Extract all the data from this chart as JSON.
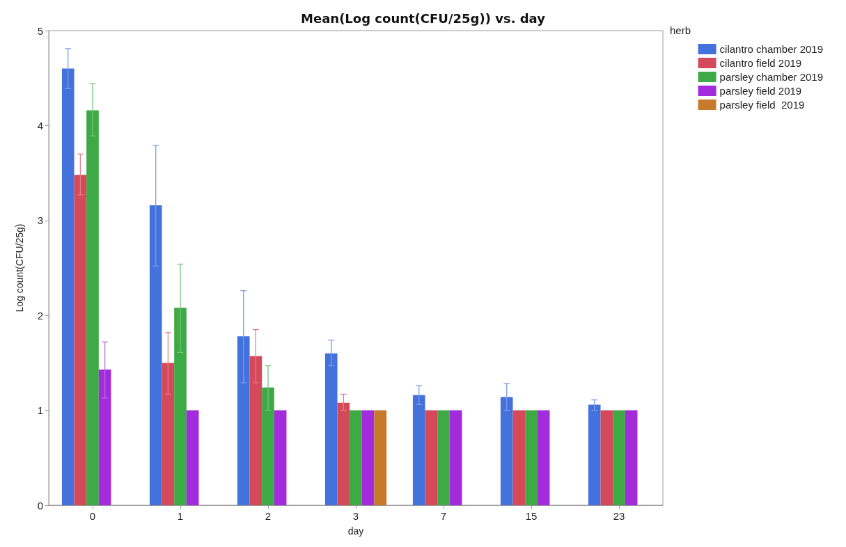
{
  "chart_data": {
    "type": "bar",
    "title": "Mean(Log count(CFU/25g)) vs. day",
    "xlabel": "day",
    "ylabel": "Log count(CFU/25g)",
    "legend_title": "herb",
    "categories": [
      "0",
      "1",
      "2",
      "3",
      "7",
      "15",
      "23"
    ],
    "series": [
      {
        "name": "cilantro chamber 2019",
        "color": "#4472dc",
        "values": [
          4.6,
          3.16,
          1.78,
          1.6,
          1.16,
          1.14,
          1.06
        ],
        "errors": [
          [
            4.39,
            4.81
          ],
          [
            2.52,
            3.79
          ],
          [
            1.29,
            2.26
          ],
          [
            1.47,
            1.74
          ],
          [
            1.06,
            1.26
          ],
          [
            1.0,
            1.28
          ],
          [
            1.0,
            1.11
          ]
        ]
      },
      {
        "name": "cilantro field 2019",
        "color": "#d44a5a",
        "values": [
          3.48,
          1.5,
          1.57,
          1.08,
          1.0,
          1.0,
          1.0
        ],
        "errors": [
          [
            3.27,
            3.7
          ],
          [
            1.17,
            1.82
          ],
          [
            1.29,
            1.85
          ],
          [
            1.0,
            1.17
          ],
          null,
          null,
          null
        ]
      },
      {
        "name": "parsley chamber 2019",
        "color": "#3daa45",
        "values": [
          4.16,
          2.08,
          1.24,
          1.0,
          1.0,
          1.0,
          1.0
        ],
        "errors": [
          [
            3.89,
            4.44
          ],
          [
            1.61,
            2.54
          ],
          [
            1.0,
            1.47
          ],
          null,
          null,
          null,
          null
        ]
      },
      {
        "name": "parsley field 2019",
        "color": "#a22bdc",
        "values": [
          1.43,
          1.0,
          1.0,
          1.0,
          1.0,
          1.0,
          1.0
        ],
        "errors": [
          [
            1.13,
            1.72
          ],
          null,
          null,
          null,
          null,
          null,
          null
        ]
      },
      {
        "name": "parsley field  2019",
        "color": "#c87a2b",
        "values": [
          null,
          null,
          null,
          1.0,
          null,
          null,
          null
        ]
      }
    ],
    "ylim": [
      0,
      5
    ],
    "yticks": [
      0,
      1,
      2,
      3,
      4,
      5
    ],
    "grid": false,
    "legend": "right"
  }
}
